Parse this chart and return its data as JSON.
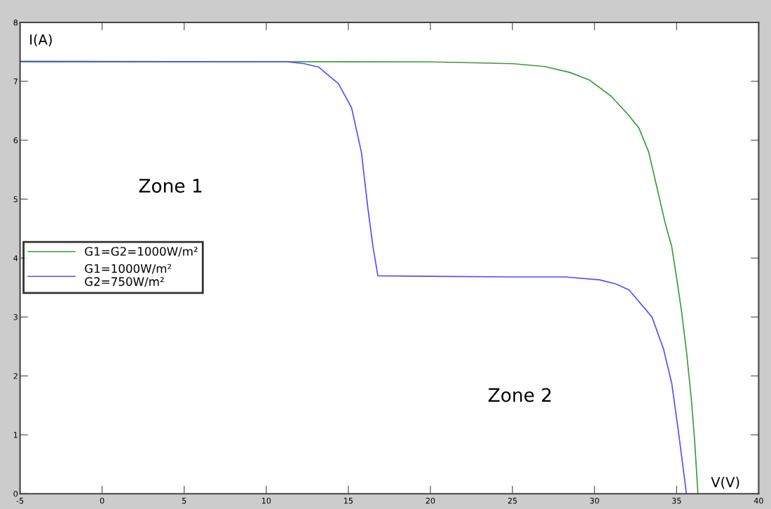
{
  "chart_data": {
    "type": "line",
    "xlabel": "V(V)",
    "ylabel": "I(A)",
    "xlim": [
      -5,
      40
    ],
    "xticks": [
      -5,
      0,
      5,
      10,
      15,
      20,
      25,
      30,
      35,
      40
    ],
    "ylim": [
      0,
      8
    ],
    "yticks": [
      0,
      1,
      2,
      3,
      4,
      5,
      6,
      7,
      8
    ],
    "grid": false,
    "legend": "left",
    "marker": "none",
    "line_style": "solid",
    "series": [
      {
        "name": "G1=G2=1000W/m²",
        "color": "#3a9a3a",
        "x": [
          -5,
          20,
          25,
          27,
          28.5,
          29.7,
          31,
          32,
          32.7,
          33.3,
          33.8,
          34.3,
          34.7,
          35.0,
          35.3,
          35.6,
          35.9,
          36.1,
          36.3
        ],
        "values": [
          7.34,
          7.33,
          7.3,
          7.25,
          7.15,
          7.02,
          6.75,
          6.45,
          6.21,
          5.8,
          5.2,
          4.6,
          4.2,
          3.67,
          3.1,
          2.42,
          1.6,
          0.9,
          0
        ]
      },
      {
        "name": "G1=1000W/m²\nG2=750W/m²",
        "color": "#4f4fff",
        "x": [
          -5,
          11.3,
          12.3,
          13.2,
          14.4,
          15.2,
          15.8,
          16.2,
          16.5,
          16.8,
          20,
          25,
          28.2,
          30.3,
          31.3,
          32.1,
          33.5,
          34.2,
          34.7,
          35.1,
          35.6
        ],
        "values": [
          7.33,
          7.33,
          7.3,
          7.24,
          6.96,
          6.55,
          5.79,
          4.83,
          4.2,
          3.7,
          3.69,
          3.68,
          3.68,
          3.63,
          3.56,
          3.46,
          3.0,
          2.46,
          1.88,
          1.08,
          0
        ]
      }
    ],
    "annotations": [
      "Zone 1",
      "Zone 2"
    ]
  }
}
